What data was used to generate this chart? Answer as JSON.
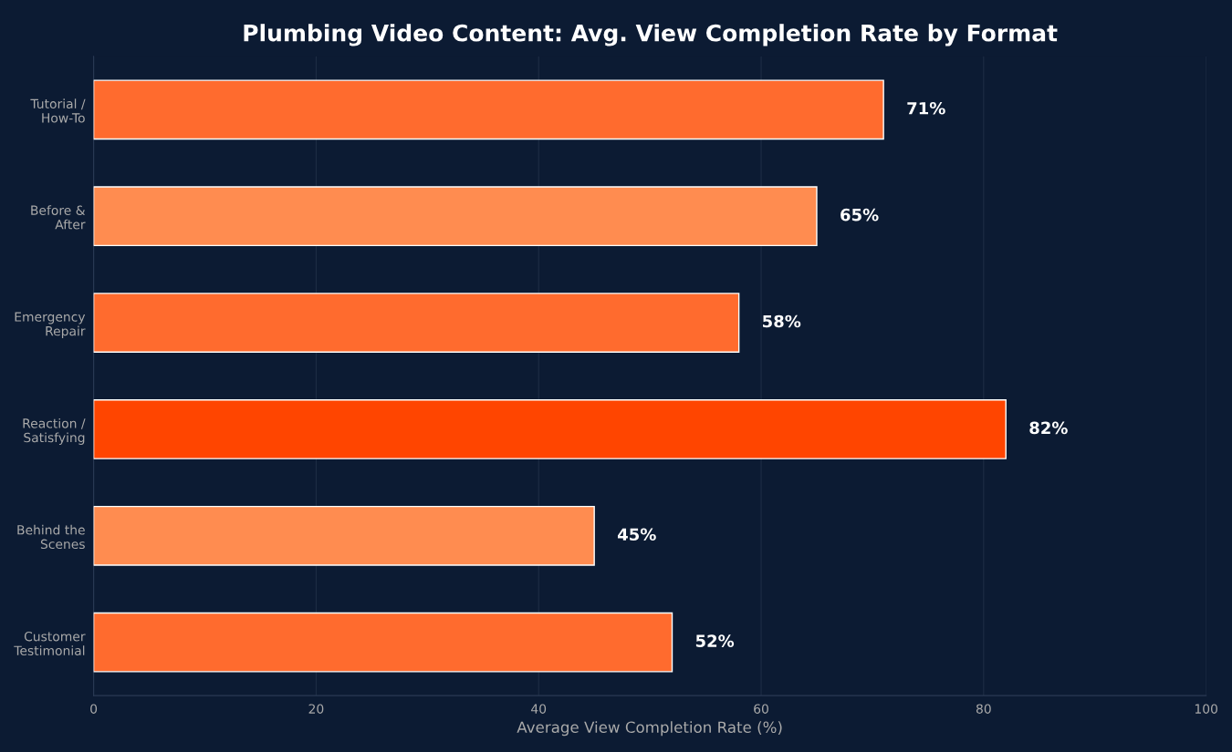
{
  "chart_data": {
    "type": "bar",
    "orientation": "horizontal",
    "title": "Plumbing Video Content: Avg. View Completion Rate by Format",
    "xlabel": "Average View Completion Rate (%)",
    "categories": [
      "Tutorial /\nHow-To",
      "Before &\nAfter",
      "Emergency\nRepair",
      "Reaction /\nSatisfying",
      "Behind the\nScenes",
      "Customer\nTestimonial"
    ],
    "values": [
      71,
      65,
      58,
      82,
      45,
      52
    ],
    "value_labels": [
      "71%",
      "65%",
      "58%",
      "82%",
      "45%",
      "52%"
    ],
    "colors": [
      "#ff6b2e",
      "#ff8c50",
      "#ff6b2e",
      "#ff4500",
      "#ff8c50",
      "#ff6b2e"
    ],
    "xlim": [
      0,
      100
    ],
    "xticks": [
      0,
      20,
      40,
      60,
      80,
      100
    ],
    "grid": "x"
  }
}
